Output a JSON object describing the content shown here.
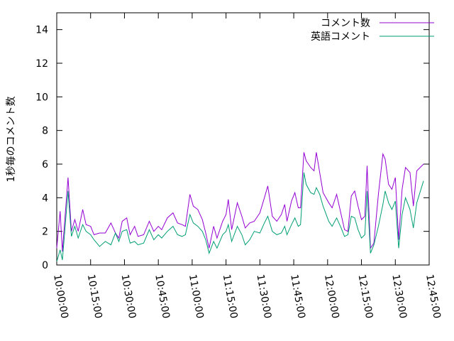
{
  "chart_data": {
    "type": "line",
    "y_label": "1秒毎のコメント数",
    "x": [
      "10:00:00",
      "10:01:30",
      "10:02:30",
      "10:05:00",
      "10:06:30",
      "10:08:00",
      "10:09:30",
      "10:11:30",
      "10:13:00",
      "10:15:00",
      "10:16:30",
      "10:19:00",
      "10:21:30",
      "10:24:00",
      "10:26:00",
      "10:27:30",
      "10:29:00",
      "10:31:00",
      "10:32:30",
      "10:34:30",
      "10:36:00",
      "10:38:30",
      "10:41:00",
      "10:43:00",
      "10:45:00",
      "10:46:30",
      "10:49:00",
      "10:51:30",
      "10:53:30",
      "10:55:30",
      "10:57:00",
      "10:59:00",
      "11:00:30",
      "11:02:30",
      "11:04:30",
      "11:06:00",
      "11:07:30",
      "11:09:30",
      "11:11:00",
      "11:13:30",
      "11:15:00",
      "11:16:00",
      "11:17:30",
      "11:20:00",
      "11:22:00",
      "11:23:30",
      "11:25:30",
      "11:27:30",
      "11:30:00",
      "11:32:00",
      "11:33:30",
      "11:35:30",
      "11:37:30",
      "11:39:30",
      "11:41:00",
      "11:42:00",
      "11:44:00",
      "11:45:30",
      "11:47:00",
      "11:48:00",
      "11:49:30",
      "11:50:30",
      "11:52:30",
      "11:54:00",
      "11:55:00",
      "11:56:30",
      "11:58:00",
      "12:00:30",
      "12:02:00",
      "12:04:00",
      "12:06:00",
      "12:07:30",
      "12:09:00",
      "12:10:30",
      "12:12:00",
      "12:13:30",
      "12:15:00",
      "12:16:30",
      "12:17:30",
      "12:19:00",
      "12:20:30",
      "12:22:30",
      "12:24:30",
      "12:25:30",
      "12:27:00",
      "12:28:30",
      "12:30:00",
      "12:31:30",
      "12:33:00",
      "12:34:30",
      "12:36:30",
      "12:38:00",
      "12:39:30",
      "12:42:30"
    ],
    "series": [
      {
        "name": "コメント数",
        "color": "#9400d3",
        "values": [
          1.0,
          3.2,
          0.8,
          5.2,
          2.0,
          2.7,
          2.0,
          3.3,
          2.4,
          2.3,
          1.8,
          1.9,
          1.9,
          2.5,
          1.9,
          1.6,
          2.6,
          2.8,
          1.8,
          2.3,
          1.7,
          1.8,
          2.6,
          2.0,
          2.3,
          2.1,
          2.8,
          3.1,
          2.5,
          2.4,
          2.3,
          4.2,
          3.5,
          3.3,
          2.7,
          1.9,
          1.0,
          2.3,
          1.6,
          2.6,
          3.0,
          3.9,
          2.1,
          3.7,
          2.9,
          2.2,
          2.5,
          2.6,
          3.1,
          4.0,
          4.7,
          2.9,
          2.6,
          3.0,
          3.6,
          2.6,
          3.8,
          4.3,
          3.4,
          3.4,
          6.7,
          6.2,
          5.8,
          5.6,
          6.7,
          5.5,
          4.3,
          3.7,
          3.4,
          4.2,
          3.0,
          2.1,
          2.0,
          4.1,
          4.4,
          3.5,
          2.7,
          2.9,
          5.9,
          1.0,
          1.3,
          4.2,
          6.6,
          6.3,
          4.8,
          4.5,
          5.2,
          1.5,
          4.5,
          5.8,
          5.5,
          3.5,
          5.6,
          6.0
        ]
      },
      {
        "name": "英語コメント",
        "color": "#009e73",
        "values": [
          0.2,
          0.9,
          0.3,
          4.4,
          1.7,
          2.3,
          1.6,
          2.4,
          2.0,
          1.8,
          1.5,
          1.1,
          1.4,
          1.2,
          1.9,
          1.4,
          2.0,
          2.1,
          1.3,
          1.4,
          1.2,
          1.3,
          2.1,
          1.5,
          1.8,
          1.6,
          2.0,
          2.3,
          1.8,
          1.7,
          1.8,
          3.0,
          2.5,
          2.3,
          2.0,
          1.5,
          0.7,
          1.4,
          1.0,
          1.8,
          2.0,
          2.4,
          1.4,
          2.3,
          1.8,
          1.2,
          1.5,
          2.0,
          1.9,
          2.5,
          2.9,
          2.0,
          1.8,
          1.9,
          2.3,
          1.8,
          2.4,
          2.8,
          2.3,
          2.4,
          5.5,
          4.8,
          4.3,
          4.2,
          4.6,
          4.2,
          3.5,
          2.6,
          2.3,
          2.8,
          2.2,
          1.7,
          1.8,
          2.9,
          2.8,
          2.1,
          1.6,
          1.8,
          4.4,
          0.7,
          1.2,
          2.3,
          3.6,
          4.4,
          3.7,
          3.3,
          3.8,
          1.0,
          3.0,
          4.0,
          3.3,
          2.2,
          3.7,
          5.0
        ]
      }
    ],
    "xlim": [
      "10:00:00",
      "12:45:00"
    ],
    "xticks": [
      "10:00:00",
      "10:15:00",
      "10:30:00",
      "10:45:00",
      "11:00:00",
      "11:15:00",
      "11:30:00",
      "11:45:00",
      "12:00:00",
      "12:15:00",
      "12:30:00",
      "12:45:00"
    ],
    "ylim": [
      0,
      15
    ],
    "yticks": [
      0,
      2,
      4,
      6,
      8,
      10,
      12,
      14
    ],
    "grid": false,
    "legend": "top-right"
  }
}
